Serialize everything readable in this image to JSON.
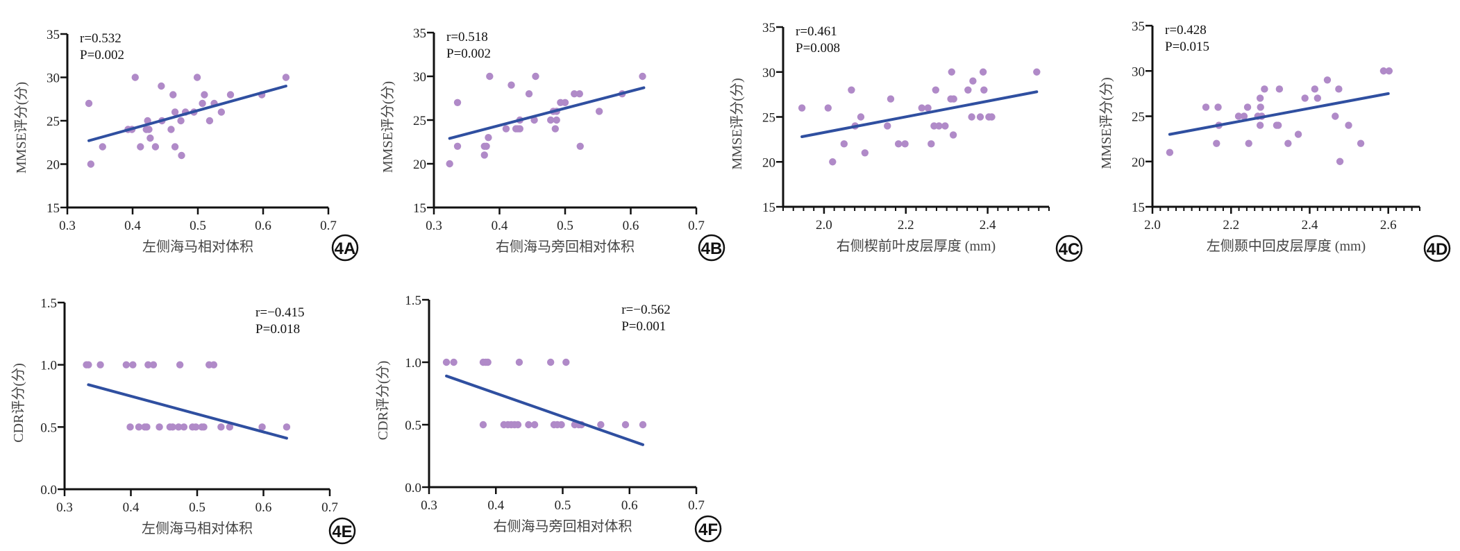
{
  "figure": {
    "colors": {
      "point": "#b08ac8",
      "fit_line": "#2f4fa0",
      "axis": "#111111"
    }
  },
  "chart_data": [
    {
      "id": "4A",
      "type": "scatter",
      "title": "",
      "stat_r": "r=0.532",
      "stat_p": "P=0.002",
      "xlabel": "左侧海马相对体积",
      "ylabel": "MMSE评分(分)",
      "xlim": [
        0.3,
        0.7
      ],
      "ylim": [
        15,
        35
      ],
      "xticks": [
        0.3,
        0.4,
        0.5,
        0.6,
        0.7
      ],
      "xtick_labels": [
        "0.3",
        "0.4",
        "0.5",
        "0.6",
        "0.7"
      ],
      "yticks": [
        15,
        20,
        25,
        30,
        35
      ],
      "ytick_labels": [
        "15",
        "20",
        "25",
        "30",
        "35"
      ],
      "x_minor_step": null,
      "stat_position": "top-left",
      "points": [
        [
          0.333,
          27
        ],
        [
          0.336,
          20
        ],
        [
          0.354,
          22
        ],
        [
          0.393,
          24
        ],
        [
          0.399,
          24
        ],
        [
          0.404,
          30
        ],
        [
          0.412,
          22
        ],
        [
          0.423,
          25
        ],
        [
          0.421,
          24
        ],
        [
          0.425,
          24
        ],
        [
          0.427,
          23
        ],
        [
          0.435,
          22
        ],
        [
          0.444,
          29
        ],
        [
          0.445,
          25
        ],
        [
          0.459,
          24
        ],
        [
          0.462,
          28
        ],
        [
          0.465,
          26
        ],
        [
          0.465,
          22
        ],
        [
          0.474,
          25
        ],
        [
          0.475,
          21
        ],
        [
          0.481,
          26
        ],
        [
          0.494,
          26
        ],
        [
          0.499,
          30
        ],
        [
          0.507,
          27
        ],
        [
          0.51,
          28
        ],
        [
          0.518,
          25
        ],
        [
          0.525,
          27
        ],
        [
          0.536,
          26
        ],
        [
          0.55,
          28
        ],
        [
          0.598,
          28
        ],
        [
          0.635,
          30
        ]
      ],
      "fit_line": [
        [
          0.333,
          22.7
        ],
        [
          0.635,
          29.0
        ]
      ]
    },
    {
      "id": "4B",
      "type": "scatter",
      "title": "",
      "stat_r": "r=0.518",
      "stat_p": "P=0.002",
      "xlabel": "右侧海马旁回相对体积",
      "ylabel": "MMSE评分(分)",
      "xlim": [
        0.3,
        0.7
      ],
      "ylim": [
        15,
        35
      ],
      "xticks": [
        0.3,
        0.4,
        0.5,
        0.6,
        0.7
      ],
      "xtick_labels": [
        "0.3",
        "0.4",
        "0.5",
        "0.6",
        "0.7"
      ],
      "yticks": [
        15,
        20,
        25,
        30,
        35
      ],
      "ytick_labels": [
        "15",
        "20",
        "25",
        "30",
        "35"
      ],
      "x_minor_step": null,
      "stat_position": "top-left",
      "points": [
        [
          0.324,
          20
        ],
        [
          0.336,
          27
        ],
        [
          0.336,
          22
        ],
        [
          0.377,
          21
        ],
        [
          0.377,
          22
        ],
        [
          0.38,
          22
        ],
        [
          0.383,
          23
        ],
        [
          0.385,
          30
        ],
        [
          0.41,
          24
        ],
        [
          0.418,
          29
        ],
        [
          0.425,
          24
        ],
        [
          0.428,
          24
        ],
        [
          0.431,
          24
        ],
        [
          0.431,
          25
        ],
        [
          0.445,
          28
        ],
        [
          0.453,
          25
        ],
        [
          0.455,
          30
        ],
        [
          0.478,
          25
        ],
        [
          0.487,
          25
        ],
        [
          0.482,
          26
        ],
        [
          0.487,
          26
        ],
        [
          0.485,
          24
        ],
        [
          0.493,
          27
        ],
        [
          0.5,
          27
        ],
        [
          0.514,
          28
        ],
        [
          0.522,
          28
        ],
        [
          0.523,
          22
        ],
        [
          0.552,
          26
        ],
        [
          0.587,
          28
        ],
        [
          0.618,
          30
        ]
      ],
      "fit_line": [
        [
          0.324,
          22.9
        ],
        [
          0.62,
          28.7
        ]
      ]
    },
    {
      "id": "4C",
      "type": "scatter",
      "title": "",
      "stat_r": "r=0.461",
      "stat_p": "P=0.008",
      "xlabel": "右侧楔前叶皮层厚度 (mm)",
      "ylabel": "MMSE评分(分)",
      "xlim": [
        1.9,
        2.55
      ],
      "ylim": [
        15,
        35
      ],
      "xticks": [
        2.0,
        2.2,
        2.4
      ],
      "xtick_labels": [
        "2.0",
        "2.2",
        "2.4"
      ],
      "yticks": [
        15,
        20,
        25,
        30,
        35
      ],
      "ytick_labels": [
        "15",
        "20",
        "25",
        "30",
        "35"
      ],
      "x_minor_step": 0.025,
      "stat_position": "top-left",
      "points": [
        [
          1.946,
          26
        ],
        [
          2.01,
          26
        ],
        [
          2.021,
          20
        ],
        [
          2.049,
          22
        ],
        [
          2.067,
          28
        ],
        [
          2.076,
          24
        ],
        [
          2.09,
          25
        ],
        [
          2.1,
          21
        ],
        [
          2.155,
          24
        ],
        [
          2.163,
          27
        ],
        [
          2.182,
          22
        ],
        [
          2.198,
          22
        ],
        [
          2.239,
          26
        ],
        [
          2.254,
          26
        ],
        [
          2.262,
          22
        ],
        [
          2.269,
          24
        ],
        [
          2.281,
          24
        ],
        [
          2.296,
          24
        ],
        [
          2.273,
          28
        ],
        [
          2.31,
          27
        ],
        [
          2.317,
          27
        ],
        [
          2.312,
          30
        ],
        [
          2.316,
          23
        ],
        [
          2.352,
          28
        ],
        [
          2.361,
          25
        ],
        [
          2.364,
          29
        ],
        [
          2.382,
          25
        ],
        [
          2.389,
          30
        ],
        [
          2.391,
          28
        ],
        [
          2.403,
          25
        ],
        [
          2.41,
          25
        ],
        [
          2.52,
          30
        ]
      ],
      "fit_line": [
        [
          1.946,
          22.8
        ],
        [
          2.52,
          27.8
        ]
      ]
    },
    {
      "id": "4D",
      "type": "scatter",
      "title": "",
      "stat_r": "r=0.428",
      "stat_p": "P=0.015",
      "xlabel": "左侧颞中回皮层厚度 (mm)",
      "ylabel": "MMSE评分(分)",
      "xlim": [
        2.0,
        2.68
      ],
      "ylim": [
        15,
        35
      ],
      "xticks": [
        2.0,
        2.2,
        2.4,
        2.6
      ],
      "xtick_labels": [
        "2.0",
        "2.2",
        "2.4",
        "2.6"
      ],
      "yticks": [
        15,
        20,
        25,
        30,
        35
      ],
      "ytick_labels": [
        "15",
        "20",
        "25",
        "30",
        "35"
      ],
      "x_minor_step": 0.02,
      "stat_position": "top-left",
      "points": [
        [
          2.044,
          21
        ],
        [
          2.136,
          26
        ],
        [
          2.163,
          22
        ],
        [
          2.167,
          26
        ],
        [
          2.169,
          24
        ],
        [
          2.219,
          25
        ],
        [
          2.233,
          25
        ],
        [
          2.242,
          26
        ],
        [
          2.245,
          22
        ],
        [
          2.268,
          25
        ],
        [
          2.278,
          25
        ],
        [
          2.274,
          27
        ],
        [
          2.275,
          26
        ],
        [
          2.274,
          24
        ],
        [
          2.285,
          28
        ],
        [
          2.316,
          24
        ],
        [
          2.32,
          24
        ],
        [
          2.323,
          28
        ],
        [
          2.345,
          22
        ],
        [
          2.371,
          23
        ],
        [
          2.388,
          27
        ],
        [
          2.413,
          28
        ],
        [
          2.42,
          27
        ],
        [
          2.445,
          29
        ],
        [
          2.465,
          25
        ],
        [
          2.474,
          28
        ],
        [
          2.477,
          20
        ],
        [
          2.499,
          24
        ],
        [
          2.53,
          22
        ],
        [
          2.588,
          30
        ],
        [
          2.602,
          30
        ]
      ],
      "fit_line": [
        [
          2.044,
          23.0
        ],
        [
          2.6,
          27.5
        ]
      ]
    },
    {
      "id": "4E",
      "type": "scatter",
      "title": "",
      "stat_r": "r=−0.415",
      "stat_p": "P=0.018",
      "xlabel": "左侧海马相对体积",
      "ylabel": "CDR评分(分)",
      "xlim": [
        0.3,
        0.7
      ],
      "ylim": [
        0.0,
        1.5
      ],
      "xticks": [
        0.3,
        0.4,
        0.5,
        0.6,
        0.7
      ],
      "xtick_labels": [
        "0.3",
        "0.4",
        "0.5",
        "0.6",
        "0.7"
      ],
      "yticks": [
        0.0,
        0.5,
        1.0,
        1.5
      ],
      "ytick_labels": [
        "0.0",
        "0.5",
        "1.0",
        "1.5"
      ],
      "x_minor_step": null,
      "stat_position": "top-right",
      "points": [
        [
          0.333,
          1.0
        ],
        [
          0.336,
          1.0
        ],
        [
          0.354,
          1.0
        ],
        [
          0.393,
          1.0
        ],
        [
          0.403,
          1.0
        ],
        [
          0.426,
          1.0
        ],
        [
          0.434,
          1.0
        ],
        [
          0.474,
          1.0
        ],
        [
          0.518,
          1.0
        ],
        [
          0.525,
          1.0
        ],
        [
          0.399,
          0.5
        ],
        [
          0.412,
          0.5
        ],
        [
          0.421,
          0.5
        ],
        [
          0.424,
          0.5
        ],
        [
          0.443,
          0.5
        ],
        [
          0.459,
          0.5
        ],
        [
          0.463,
          0.5
        ],
        [
          0.472,
          0.5
        ],
        [
          0.48,
          0.5
        ],
        [
          0.493,
          0.5
        ],
        [
          0.498,
          0.5
        ],
        [
          0.507,
          0.5
        ],
        [
          0.51,
          0.5
        ],
        [
          0.536,
          0.5
        ],
        [
          0.549,
          0.5
        ],
        [
          0.598,
          0.5
        ],
        [
          0.635,
          0.5
        ]
      ],
      "fit_line": [
        [
          0.336,
          0.84
        ],
        [
          0.635,
          0.41
        ]
      ]
    },
    {
      "id": "4F",
      "type": "scatter",
      "title": "",
      "stat_r": "r=−0.562",
      "stat_p": "P=0.001",
      "xlabel": "右侧海马旁回相对体积",
      "ylabel": "CDR评分(分)",
      "xlim": [
        0.3,
        0.7
      ],
      "ylim": [
        0.0,
        1.5
      ],
      "xticks": [
        0.3,
        0.4,
        0.5,
        0.6,
        0.7
      ],
      "xtick_labels": [
        "0.3",
        "0.4",
        "0.5",
        "0.6",
        "0.7"
      ],
      "yticks": [
        0.0,
        0.5,
        1.0,
        1.5
      ],
      "ytick_labels": [
        "0.0",
        "0.5",
        "1.0",
        "1.5"
      ],
      "x_minor_step": null,
      "stat_position": "top-right",
      "points": [
        [
          0.326,
          1.0
        ],
        [
          0.337,
          1.0
        ],
        [
          0.381,
          1.0
        ],
        [
          0.385,
          1.0
        ],
        [
          0.388,
          1.0
        ],
        [
          0.435,
          1.0
        ],
        [
          0.482,
          1.0
        ],
        [
          0.505,
          1.0
        ],
        [
          0.381,
          0.5
        ],
        [
          0.412,
          0.5
        ],
        [
          0.418,
          0.5
        ],
        [
          0.423,
          0.5
        ],
        [
          0.428,
          0.5
        ],
        [
          0.433,
          0.5
        ],
        [
          0.449,
          0.5
        ],
        [
          0.458,
          0.5
        ],
        [
          0.487,
          0.5
        ],
        [
          0.492,
          0.5
        ],
        [
          0.498,
          0.5
        ],
        [
          0.518,
          0.5
        ],
        [
          0.524,
          0.5
        ],
        [
          0.528,
          0.5
        ],
        [
          0.557,
          0.5
        ],
        [
          0.594,
          0.5
        ],
        [
          0.62,
          0.5
        ]
      ],
      "fit_line": [
        [
          0.326,
          0.89
        ],
        [
          0.62,
          0.34
        ]
      ]
    }
  ]
}
